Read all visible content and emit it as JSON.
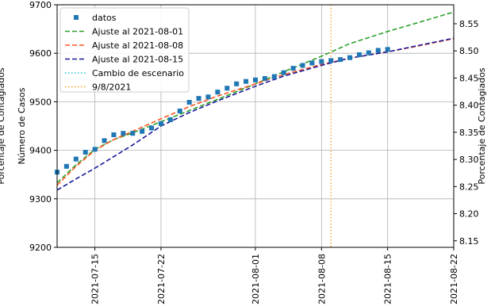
{
  "chart_data": {
    "type": "line",
    "title": "",
    "xlabel": "",
    "ylabel": "Número de Casos",
    "ylabel_right": "Porcentaje de Contagiados",
    "ylabel_left_outer": "Porcentaje de Contagiados",
    "xlim": [
      "2021-07-11",
      "2021-08-22"
    ],
    "ylim": [
      9200,
      9700
    ],
    "ylim_right": [
      8.138,
      8.585
    ],
    "grid": true,
    "legend_position": "upper-left",
    "x_ticks": [
      "2021-07-15",
      "2021-07-22",
      "2021-08-01",
      "2021-08-08",
      "2021-08-15",
      "2021-08-22"
    ],
    "y_ticks": [
      9200,
      9300,
      9400,
      9500,
      9600,
      9700
    ],
    "y_ticks_right": [
      "8.15",
      "8.20",
      "8.25",
      "8.30",
      "8.35",
      "8.40",
      "8.45",
      "8.50",
      "8.55"
    ],
    "legend": [
      {
        "label": "datos",
        "style": "marker",
        "color": "#1f77b4"
      },
      {
        "label": "Ajuste al 2021-08-01",
        "style": "dashed",
        "color": "#2ca02c"
      },
      {
        "label": "Ajuste al 2021-08-08",
        "style": "dashed",
        "color": "#ff5722"
      },
      {
        "label": "Ajuste al 2021-08-15",
        "style": "dashed",
        "color": "#1a1a9c"
      },
      {
        "label": "Cambio de escenario",
        "style": "dotted",
        "color": "#17becf"
      },
      {
        "label": "9/8/2021",
        "style": "dotted",
        "color": "#ff9f1c"
      }
    ],
    "series": [
      {
        "name": "datos",
        "kind": "scatter",
        "color": "#1f77b4",
        "points": [
          [
            "2021-07-11",
            9355
          ],
          [
            "2021-07-12",
            9367
          ],
          [
            "2021-07-13",
            9382
          ],
          [
            "2021-07-14",
            9396
          ],
          [
            "2021-07-15",
            9402
          ],
          [
            "2021-07-16",
            9420
          ],
          [
            "2021-07-17",
            9432
          ],
          [
            "2021-07-18",
            9435
          ],
          [
            "2021-07-19",
            9435
          ],
          [
            "2021-07-20",
            9439
          ],
          [
            "2021-07-21",
            9446
          ],
          [
            "2021-07-22",
            9455
          ],
          [
            "2021-07-23",
            9463
          ],
          [
            "2021-07-24",
            9481
          ],
          [
            "2021-07-25",
            9499
          ],
          [
            "2021-07-26",
            9507
          ],
          [
            "2021-07-27",
            9510
          ],
          [
            "2021-07-28",
            9520
          ],
          [
            "2021-07-29",
            9528
          ],
          [
            "2021-07-30",
            9537
          ],
          [
            "2021-07-31",
            9542
          ],
          [
            "2021-08-01",
            9545
          ],
          [
            "2021-08-02",
            9548
          ],
          [
            "2021-08-03",
            9552
          ],
          [
            "2021-08-04",
            9560
          ],
          [
            "2021-08-05",
            9569
          ],
          [
            "2021-08-06",
            9575
          ],
          [
            "2021-08-07",
            9580
          ],
          [
            "2021-08-08",
            9583
          ],
          [
            "2021-08-09",
            9585
          ],
          [
            "2021-08-10",
            9587
          ],
          [
            "2021-08-11",
            9591
          ],
          [
            "2021-08-12",
            9597
          ],
          [
            "2021-08-13",
            9601
          ],
          [
            "2021-08-14",
            9606
          ],
          [
            "2021-08-15",
            9608
          ]
        ]
      },
      {
        "name": "Ajuste al 2021-08-01",
        "kind": "line",
        "style": "dashed",
        "color": "#2ca02c",
        "points": [
          [
            "2021-07-11",
            9333
          ],
          [
            "2021-07-13",
            9370
          ],
          [
            "2021-07-15",
            9402
          ],
          [
            "2021-07-17",
            9422
          ],
          [
            "2021-07-19",
            9436
          ],
          [
            "2021-07-22",
            9459
          ],
          [
            "2021-07-25",
            9482
          ],
          [
            "2021-07-28",
            9505
          ],
          [
            "2021-08-01",
            9537
          ],
          [
            "2021-08-04",
            9562
          ],
          [
            "2021-08-08",
            9594
          ],
          [
            "2021-08-11",
            9620
          ],
          [
            "2021-08-15",
            9645
          ],
          [
            "2021-08-18",
            9662
          ],
          [
            "2021-08-22",
            9685
          ]
        ]
      },
      {
        "name": "Ajuste al 2021-08-08",
        "kind": "line",
        "style": "dashed",
        "color": "#ff5722",
        "points": [
          [
            "2021-07-11",
            9328
          ],
          [
            "2021-07-13",
            9367
          ],
          [
            "2021-07-15",
            9400
          ],
          [
            "2021-07-17",
            9422
          ],
          [
            "2021-07-19",
            9439
          ],
          [
            "2021-07-22",
            9465
          ],
          [
            "2021-07-25",
            9490
          ],
          [
            "2021-07-28",
            9512
          ],
          [
            "2021-08-01",
            9537
          ],
          [
            "2021-08-04",
            9556
          ],
          [
            "2021-08-08",
            9577
          ],
          [
            "2021-08-11",
            9590
          ],
          [
            "2021-08-15",
            9603
          ],
          [
            "2021-08-18",
            9614
          ],
          [
            "2021-08-22",
            9630
          ]
        ]
      },
      {
        "name": "Ajuste al 2021-08-15",
        "kind": "line",
        "style": "dashed",
        "color": "#1a1a9c",
        "points": [
          [
            "2021-07-11",
            9318
          ],
          [
            "2021-07-13",
            9341
          ],
          [
            "2021-07-15",
            9363
          ],
          [
            "2021-07-17",
            9387
          ],
          [
            "2021-07-19",
            9411
          ],
          [
            "2021-07-22",
            9450
          ],
          [
            "2021-07-25",
            9478
          ],
          [
            "2021-07-28",
            9502
          ],
          [
            "2021-08-01",
            9532
          ],
          [
            "2021-08-04",
            9553
          ],
          [
            "2021-08-08",
            9575
          ],
          [
            "2021-08-11",
            9590
          ],
          [
            "2021-08-15",
            9603
          ],
          [
            "2021-08-18",
            9615
          ],
          [
            "2021-08-22",
            9631
          ]
        ]
      }
    ],
    "vertical_lines": [
      {
        "name": "9/8/2021",
        "x": "2021-08-09",
        "style": "dotted",
        "color": "#ff9f1c"
      }
    ]
  }
}
